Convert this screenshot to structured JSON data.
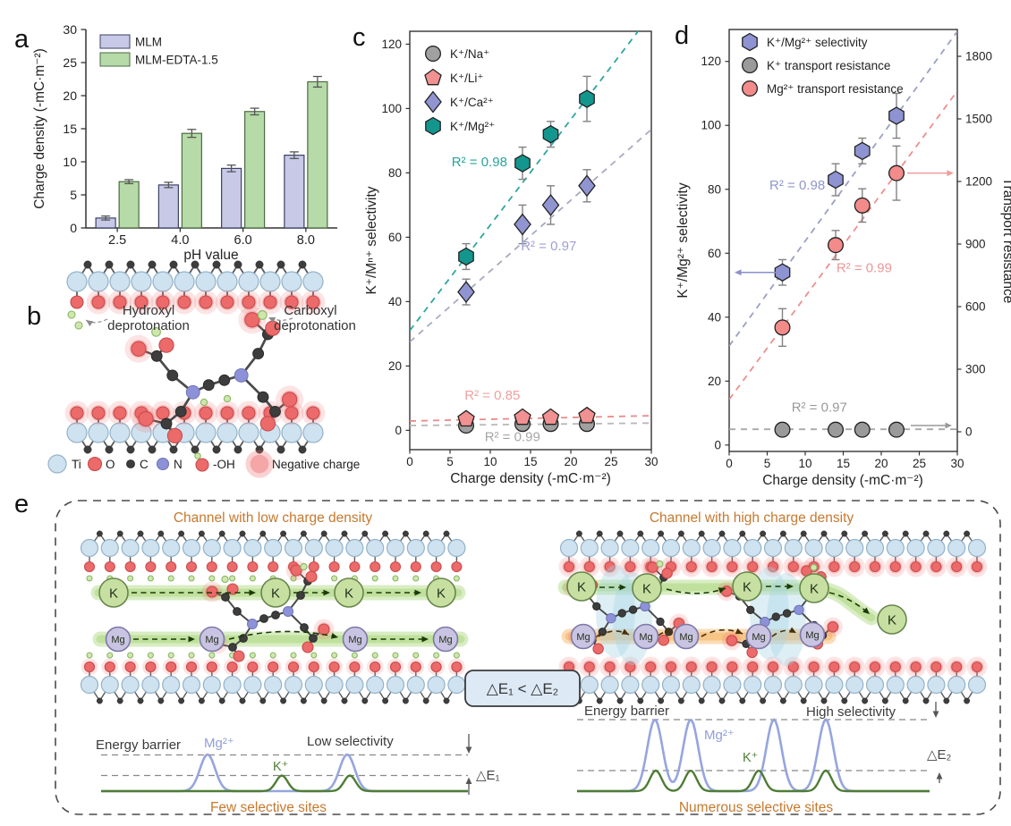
{
  "panels": {
    "a": "a",
    "b": "b",
    "c": "c",
    "d": "d",
    "e": "e"
  },
  "colors": {
    "accent_orange": "#c5792f",
    "teal": "#13968e",
    "periwinkle": "#8e93d2",
    "salmon": "#f28b8b",
    "gray": "#9e9e9e",
    "k_green": "#c7e0a2",
    "k_green_edge": "#67864a",
    "mg_purple": "#c9c4e2",
    "mg_purple_edge": "#7d78a8",
    "ti_blue": "#cfe2f0",
    "ti_blue_edge": "#93b2c9",
    "o_red": "#ec6a6a",
    "o_red_edge": "#c94b4b",
    "n_purple": "#8d92d8",
    "c_dark": "#3d3d3d",
    "h_green": "#cfe7ae",
    "energy_blue": "#96a5de",
    "energy_green": "#4e7d35"
  },
  "chart_data": [
    {
      "id": "a",
      "type": "bar",
      "categories": [
        "2.5",
        "4.0",
        "6.0",
        "8.0"
      ],
      "xlabel": "pH value",
      "ylabel": "Charge density (-mC·m⁻²)",
      "ylim": [
        0,
        30
      ],
      "yticks": [
        0,
        5,
        10,
        15,
        20,
        25,
        30
      ],
      "grid": false,
      "legend_position": "top-left",
      "series": [
        {
          "name": "MLM",
          "fill": "#c7c9e6",
          "stroke": "#3c4265",
          "values": [
            1.5,
            6.5,
            9.0,
            11.0
          ],
          "errors": [
            0.3,
            0.4,
            0.5,
            0.5
          ]
        },
        {
          "name": "MLM-EDTA-1.5",
          "fill": "#b6daa8",
          "stroke": "#4c6a43",
          "values": [
            7.0,
            14.3,
            17.6,
            22.1
          ],
          "errors": [
            0.3,
            0.6,
            0.5,
            0.8
          ]
        }
      ]
    },
    {
      "id": "c",
      "type": "scatter",
      "xlabel": "Charge density (-mC·m⁻²)",
      "ylabel": "K⁺/Mⁿ⁺ selectivity",
      "xlim": [
        0,
        30
      ],
      "xticks": [
        0,
        5,
        10,
        15,
        20,
        25,
        30
      ],
      "ylim": [
        -6,
        124
      ],
      "yticks": [
        0,
        20,
        40,
        60,
        80,
        100,
        120
      ],
      "legend_position": "top-left",
      "x": [
        7,
        14,
        17.5,
        22
      ],
      "series": [
        {
          "name": "K⁺/Na⁺",
          "marker": "circle",
          "color": "#a0a0a0",
          "values": [
            1.5,
            2.0,
            2.0,
            2.0
          ],
          "errors": [
            1.2,
            1.2,
            1.2,
            1.2
          ],
          "trend": {
            "intercept": 1.5,
            "slope": 0.025,
            "color": "#b8b8b8"
          },
          "r2": "R² = 0.99",
          "r2_color": "#a6a6a6"
        },
        {
          "name": "K⁺/Li⁺",
          "marker": "pentagon",
          "color": "#f19191",
          "values": [
            3.5,
            4.0,
            4.0,
            4.5
          ],
          "errors": [
            1.5,
            1.5,
            1.5,
            1.5
          ],
          "trend": {
            "intercept": 2.9,
            "slope": 0.055,
            "color": "#e98a8a"
          },
          "r2": "R² = 0.85",
          "r2_color": "#f0a0a0"
        },
        {
          "name": "K⁺/Ca²⁺",
          "marker": "diamond",
          "color": "#9095d2",
          "values": [
            43,
            64,
            70,
            76
          ],
          "errors": [
            4,
            6,
            6,
            5
          ],
          "trend": {
            "intercept": 27.5,
            "slope": 2.2,
            "color": "#a8abc0"
          },
          "r2": "R² = 0.97",
          "r2_color": "#9ca1d6"
        },
        {
          "name": "K⁺/Mg²⁺",
          "marker": "hexagon",
          "color": "#13968e",
          "values": [
            54,
            83,
            92,
            103
          ],
          "errors": [
            4,
            5,
            4,
            7
          ],
          "trend": {
            "intercept": 31,
            "slope": 3.28,
            "color": "#2ea79e"
          },
          "r2": "R² = 0.98",
          "r2_color": "#28a49b"
        }
      ]
    },
    {
      "id": "d",
      "type": "scatter_dual",
      "xlabel": "Charge density (-mC·m⁻²)",
      "ylabel_left": "K⁺/Mg²⁺ selectivity",
      "ylabel_right": "Transport resistance",
      "xlim": [
        0,
        30
      ],
      "xticks": [
        0,
        5,
        10,
        15,
        20,
        25,
        30
      ],
      "ylim_left": [
        -2,
        130
      ],
      "yticks_left": [
        0,
        20,
        40,
        60,
        80,
        100,
        120
      ],
      "ylim_right": [
        0,
        1800
      ],
      "yticks_right": [
        0,
        300,
        600,
        900,
        1200,
        1500,
        1800
      ],
      "legend_position": "top-left",
      "x": [
        7,
        14,
        17.5,
        22
      ],
      "series": [
        {
          "name": "K⁺/Mg²⁺ selectivity",
          "axis": "left",
          "marker": "hexagon",
          "color": "#8e93d2",
          "values": [
            54,
            83,
            92,
            103
          ],
          "errors": [
            4,
            5,
            4,
            7
          ],
          "trend": {
            "intercept": 31,
            "slope": 3.28,
            "color": "#9aa0c4"
          },
          "r2": "R² = 0.98",
          "r2_color": "#9096cc"
        },
        {
          "name": "K⁺ transport resistance",
          "axis": "right",
          "marker": "circle",
          "color": "#9a9a9a",
          "values": [
            10,
            10,
            10,
            10
          ],
          "errors": [
            0,
            0,
            0,
            0
          ],
          "trend": {
            "intercept": 12,
            "slope": 0,
            "color": "#a8a8a8"
          },
          "r2": "R² = 0.97",
          "r2_color": "#9a9a9a"
        },
        {
          "name": "Mg²⁺ transport resistance",
          "axis": "right",
          "marker": "circle",
          "color": "#f38b8b",
          "values": [
            500,
            895,
            1085,
            1240
          ],
          "errors": [
            90,
            70,
            80,
            130
          ],
          "trend": {
            "intercept": 155,
            "slope": 49.3,
            "color": "#ec8f8f"
          },
          "r2": "R² = 0.99",
          "r2_color": "#ef9696"
        }
      ]
    }
  ],
  "panel_b": {
    "annotations": {
      "hydroxyl_line1": "Hydroxyl",
      "hydroxyl_line2": "deprotonation",
      "carboxyl_line1": "Carboxyl",
      "carboxyl_line2": "deprotonation"
    },
    "legend": [
      {
        "label": "Ti"
      },
      {
        "label": "O"
      },
      {
        "label": "C"
      },
      {
        "label": "N"
      },
      {
        "label": "-OH"
      },
      {
        "label": "Negative charge"
      }
    ]
  },
  "panel_e": {
    "left_title": "Channel with low charge density",
    "right_title": "Channel with high charge density",
    "relation": "△E₁ < △E₂",
    "ion_k": "K",
    "ion_mg": "Mg",
    "left": {
      "barrier": "Energy barrier",
      "mg": "Mg²⁺",
      "k": "K⁺",
      "selectivity": "Low selectivity",
      "delta": "△E₁",
      "sites": "Few selective sites"
    },
    "right": {
      "barrier": "Energy barrier",
      "mg": "Mg²⁺",
      "k": "K⁺",
      "selectivity": "High selectivity",
      "delta": "△E₂",
      "sites": "Numerous selective sites"
    }
  }
}
